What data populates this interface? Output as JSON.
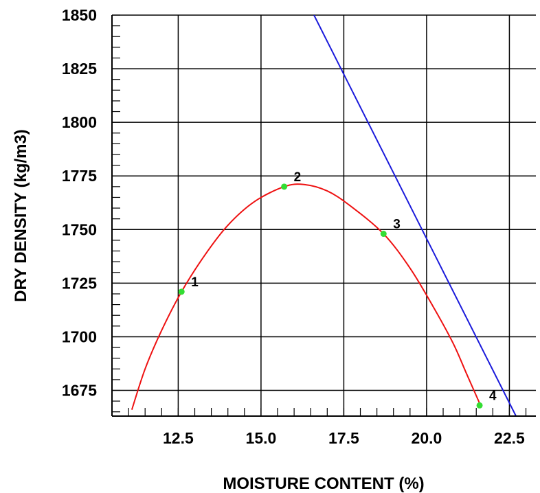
{
  "chart_data": {
    "type": "scatter",
    "xlabel": "MOISTURE CONTENT (%)",
    "ylabel": "DRY DENSITY (kg/m3)",
    "xlim": [
      10.5,
      23.3
    ],
    "ylim": [
      1663,
      1850
    ],
    "x_ticks": [
      12.5,
      15.0,
      17.5,
      20.0,
      22.5
    ],
    "x_tick_labels": [
      "12.5",
      "15.0",
      "17.5",
      "20.0",
      "22.5"
    ],
    "y_ticks": [
      1675,
      1700,
      1725,
      1750,
      1775,
      1800,
      1825,
      1850
    ],
    "y_tick_labels": [
      "1675",
      "1700",
      "1725",
      "1750",
      "1775",
      "1800",
      "1825",
      "1850"
    ],
    "grid": true,
    "series": [
      {
        "type": "scatter",
        "color": "#33dd33",
        "points": [
          {
            "label": "1",
            "x": 12.6,
            "y": 1721
          },
          {
            "label": "2",
            "x": 15.7,
            "y": 1770
          },
          {
            "label": "3",
            "x": 18.7,
            "y": 1748
          },
          {
            "label": "4",
            "x": 21.6,
            "y": 1668
          }
        ]
      },
      {
        "type": "line",
        "color": "#ee1111",
        "x": [
          11.1,
          11.5,
          12.0,
          12.6,
          13.3,
          14.0,
          14.8,
          15.7,
          16.3,
          17.0,
          17.7,
          18.7,
          19.5,
          20.2,
          20.8,
          21.2,
          21.6
        ],
        "y": [
          1666,
          1685,
          1703,
          1721,
          1738,
          1752,
          1763,
          1770,
          1771,
          1768,
          1761,
          1748,
          1732,
          1714,
          1697,
          1683,
          1669
        ]
      },
      {
        "type": "line",
        "color": "#1a1adb",
        "x": [
          16.6,
          22.7
        ],
        "y": [
          1850,
          1663
        ]
      }
    ]
  }
}
